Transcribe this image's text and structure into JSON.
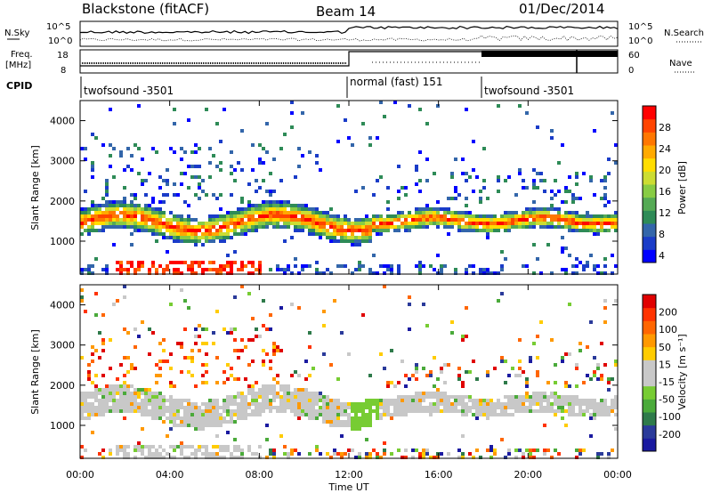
{
  "header": {
    "station": "Blackstone (fitACF)",
    "beam": "Beam 14",
    "date": "01/Dec/2014"
  },
  "summary": {
    "nsky_label_1": "N.Sky",
    "nsky_ticks": [
      "10^5",
      "10^0"
    ],
    "nsearch_label": "N.Search",
    "freq_label_1": "Freq.",
    "freq_label_2": "[MHz]",
    "freq_ticks": [
      "18",
      "8"
    ],
    "nave_ticks": [
      "60",
      "0"
    ],
    "nave_label": "Nave",
    "cpid_label": "CPID",
    "cpid_segments": [
      {
        "label": "twofsound -3501",
        "start": "00:00",
        "end": "12:55"
      },
      {
        "label": "normal (fast) 151",
        "start": "12:55",
        "end": "18:00"
      },
      {
        "label": "twofsound -3501",
        "start": "18:00",
        "end": "24:00"
      }
    ]
  },
  "colorbars": {
    "power": {
      "label": "Power [dB]",
      "ticks": [
        "28",
        "24",
        "20",
        "16",
        "12",
        "8",
        "4"
      ],
      "colors": [
        "#0000ff",
        "#1a3cc8",
        "#3366aa",
        "#2e8b57",
        "#55aa55",
        "#88cc44",
        "#ccdd33",
        "#ffdd00",
        "#ffaa00",
        "#ff7700",
        "#ff4400",
        "#ff0000"
      ]
    },
    "velocity": {
      "label": "Velocity [m s⁻¹]",
      "ticks": [
        "200",
        "100",
        "50",
        "15",
        "-15",
        "-50",
        "-100",
        "-200"
      ],
      "colors": [
        "#1a1aa0",
        "#2a3a9a",
        "#2e7a4a",
        "#4aaa3a",
        "#77cc33",
        "#c8c8c8",
        "#c8c8c8",
        "#ffcc00",
        "#ff9900",
        "#ff6600",
        "#ff3300",
        "#e00000"
      ]
    }
  },
  "axes": {
    "ylabel": "Slant Range [km]",
    "xlabel": "Time UT",
    "yticks": [
      "4000",
      "3000",
      "2000",
      "1000"
    ],
    "xticks": [
      "00:00",
      "04:00",
      "08:00",
      "12:00",
      "16:00",
      "20:00",
      "00:00"
    ]
  },
  "chart_data": [
    {
      "type": "heatmap",
      "title": "",
      "ylabel": "Slant Range [km]",
      "xlabel": "Time UT",
      "quantity": "Power [dB]",
      "xlim": [
        0,
        24
      ],
      "ylim": [
        180,
        4500
      ],
      "clim": [
        0,
        30
      ],
      "bands": [
        {
          "t": [
            0,
            13
          ],
          "r_center": 1500,
          "r_width": 350,
          "value": 24
        },
        {
          "t": [
            13,
            24
          ],
          "r_center": 1550,
          "r_width": 250,
          "value": 20
        }
      ]
    },
    {
      "type": "heatmap",
      "title": "",
      "ylabel": "Slant Range [km]",
      "xlabel": "Time UT",
      "quantity": "Velocity [m s^-1]",
      "xlim": [
        0,
        24
      ],
      "ylim": [
        180,
        4500
      ],
      "clim": [
        -200,
        200
      ],
      "bands": [
        {
          "t": [
            0,
            13
          ],
          "r_center": 1500,
          "r_width": 450,
          "value": 0
        },
        {
          "t": [
            13,
            24
          ],
          "r_center": 1500,
          "r_width": 350,
          "value": 0
        }
      ]
    }
  ]
}
